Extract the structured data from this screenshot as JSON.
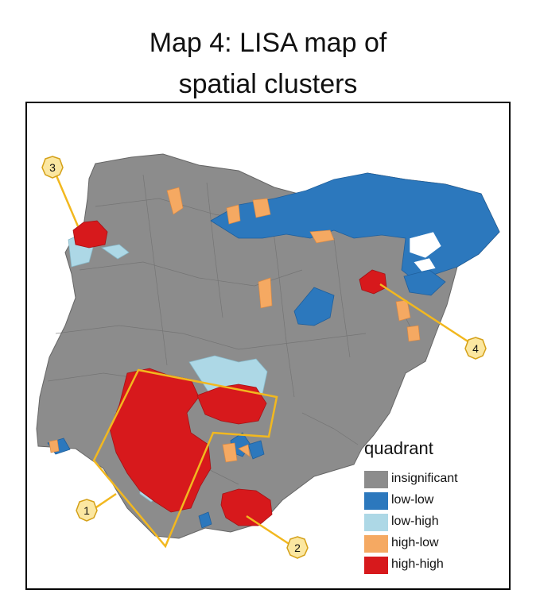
{
  "title": {
    "line1": "Map 4: LISA map of",
    "line2": "spatial clusters"
  },
  "legend": {
    "title": "quadrant",
    "items": [
      {
        "label": "insignificant",
        "color": "#8c8c8c"
      },
      {
        "label": "low-low",
        "color": "#2c78bd"
      },
      {
        "label": "low-high",
        "color": "#add8e6"
      },
      {
        "label": "high-low",
        "color": "#f5a962"
      },
      {
        "label": "high-high",
        "color": "#d7191c"
      }
    ]
  },
  "colors": {
    "outline": "#555555",
    "highlight": "#f2b81f",
    "marker_fill": "#fbe7a1"
  },
  "annotations": [
    {
      "label": "1",
      "region": "south-west high-high cluster"
    },
    {
      "label": "2",
      "region": "south-east high-high cluster"
    },
    {
      "label": "3",
      "region": "north-west high-high cluster"
    },
    {
      "label": "4",
      "region": "north-east high-high cluster"
    }
  ]
}
